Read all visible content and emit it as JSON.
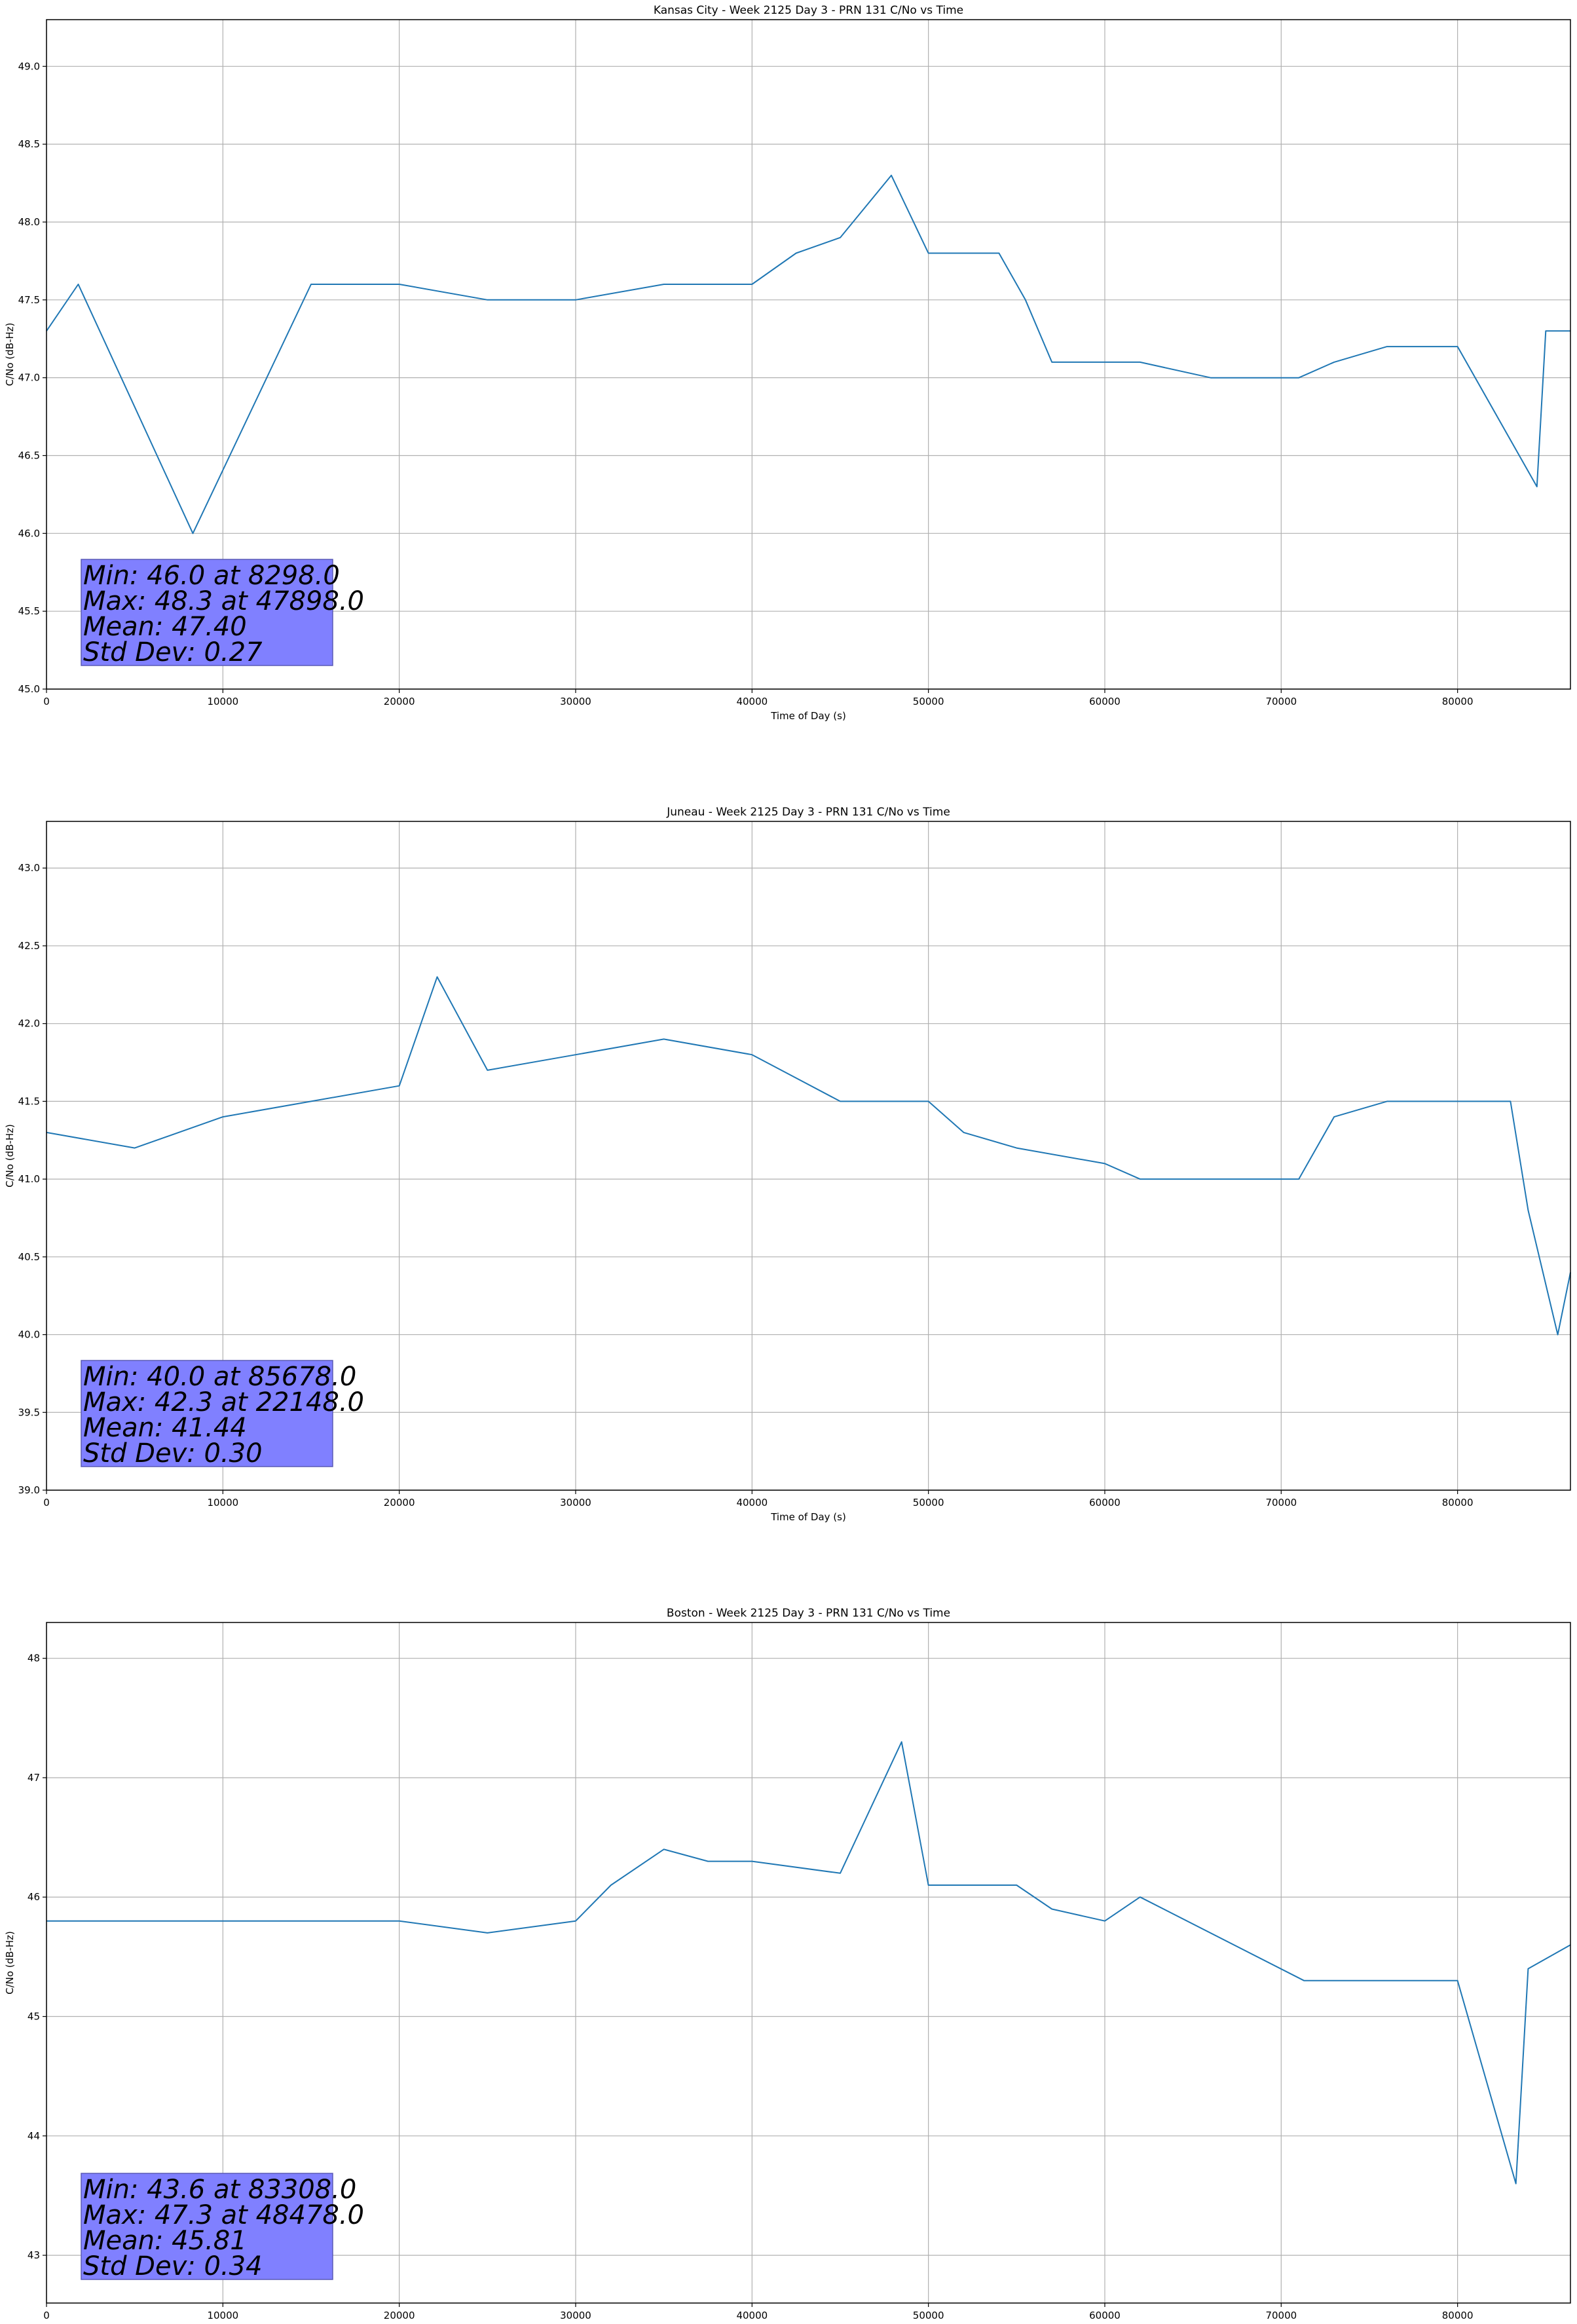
{
  "chart_data": [
    {
      "type": "line",
      "title": "Kansas City - Week 2125 Day 3 - PRN 131 C/No vs Time",
      "xlabel": "Time of Day (s)",
      "ylabel": "C/No (dB-Hz)",
      "xlim": [
        0,
        86400
      ],
      "ylim": [
        45.0,
        49.3
      ],
      "x_ticks": [
        0,
        10000,
        20000,
        30000,
        40000,
        50000,
        60000,
        70000,
        80000
      ],
      "y_ticks": [
        "45.0",
        "45.5",
        "46.0",
        "46.5",
        "47.0",
        "47.5",
        "48.0",
        "48.5",
        "49.0"
      ],
      "grid": true,
      "stats": [
        "Min: 46.0 at 8298.0",
        "Max: 48.3 at 47898.0",
        "Mean: 47.40",
        "Std Dev: 0.27"
      ],
      "x": [
        0,
        1800,
        8298,
        15000,
        20000,
        25000,
        30000,
        35000,
        40000,
        42500,
        45000,
        47898,
        50000,
        54000,
        55500,
        57000,
        60000,
        62000,
        66000,
        71000,
        73000,
        76000,
        80000,
        84500,
        85000,
        86400
      ],
      "values": [
        47.3,
        47.6,
        46.0,
        47.6,
        47.6,
        47.5,
        47.5,
        47.6,
        47.6,
        47.8,
        47.9,
        48.3,
        47.8,
        47.8,
        47.5,
        47.1,
        47.1,
        47.1,
        47.0,
        47.0,
        47.1,
        47.2,
        47.2,
        46.3,
        47.3,
        47.3
      ]
    },
    {
      "type": "line",
      "title": "Juneau - Week 2125 Day 3 - PRN 131 C/No vs Time",
      "xlabel": "Time of Day (s)",
      "ylabel": "C/No (dB-Hz)",
      "xlim": [
        0,
        86400
      ],
      "ylim": [
        39.0,
        43.3
      ],
      "x_ticks": [
        0,
        10000,
        20000,
        30000,
        40000,
        50000,
        60000,
        70000,
        80000
      ],
      "y_ticks": [
        "39.0",
        "39.5",
        "40.0",
        "40.5",
        "41.0",
        "41.5",
        "42.0",
        "42.5",
        "43.0"
      ],
      "grid": true,
      "stats": [
        "Min: 40.0 at 85678.0",
        "Max: 42.3 at 22148.0",
        "Mean: 41.44",
        "Std Dev: 0.30"
      ],
      "x": [
        0,
        5000,
        10000,
        15000,
        20000,
        22148,
        25000,
        30000,
        35000,
        40000,
        45000,
        50000,
        52000,
        55000,
        60000,
        62000,
        66000,
        71000,
        73000,
        76000,
        80000,
        83000,
        84000,
        85678,
        86400
      ],
      "values": [
        41.3,
        41.2,
        41.4,
        41.5,
        41.6,
        42.3,
        41.7,
        41.8,
        41.9,
        41.8,
        41.5,
        41.5,
        41.3,
        41.2,
        41.1,
        41.0,
        41.0,
        41.0,
        41.4,
        41.5,
        41.5,
        41.5,
        40.8,
        40.0,
        40.4
      ]
    },
    {
      "type": "line",
      "title": "Boston - Week 2125 Day 3 - PRN 131 C/No vs Time",
      "xlabel": "Time of Day (s)",
      "ylabel": "C/No (dB-Hz)",
      "xlim": [
        0,
        86400
      ],
      "ylim": [
        42.6,
        48.3
      ],
      "x_ticks": [
        0,
        10000,
        20000,
        30000,
        40000,
        50000,
        60000,
        70000,
        80000
      ],
      "y_ticks": [
        "43",
        "44",
        "45",
        "46",
        "47",
        "48"
      ],
      "grid": true,
      "stats": [
        "Min: 43.6 at 83308.0",
        "Max: 47.3 at 48478.0",
        "Mean: 45.81",
        "Std Dev: 0.34"
      ],
      "x": [
        0,
        5000,
        10000,
        15000,
        20000,
        25000,
        30000,
        32000,
        35000,
        37500,
        40000,
        45000,
        48478,
        50000,
        55000,
        57000,
        60000,
        62000,
        71300,
        73000,
        76000,
        80000,
        83308,
        84000,
        86400
      ],
      "values": [
        45.8,
        45.8,
        45.8,
        45.8,
        45.8,
        45.7,
        45.8,
        46.1,
        46.4,
        46.3,
        46.3,
        46.2,
        47.3,
        46.1,
        46.1,
        45.9,
        45.8,
        46.0,
        45.3,
        45.3,
        45.3,
        45.3,
        43.6,
        45.4,
        45.6
      ]
    }
  ]
}
